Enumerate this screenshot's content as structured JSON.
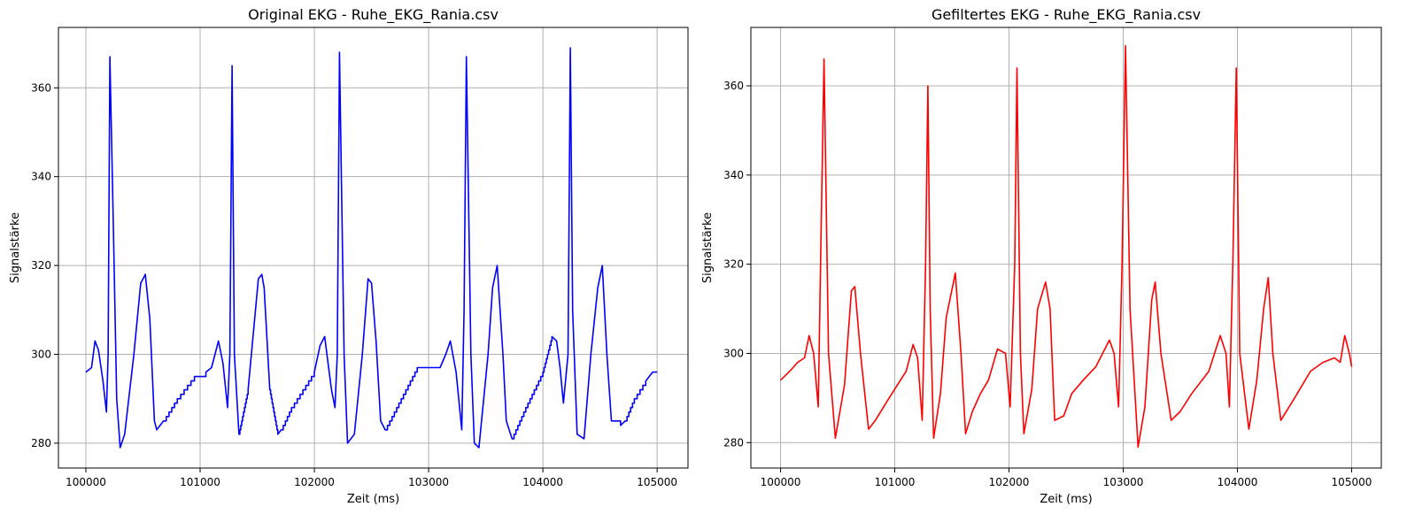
{
  "colors": {
    "background": "#ffffff",
    "grid": "#b0b0b0",
    "axes": "#000000"
  },
  "chart_data": [
    {
      "type": "line",
      "title": "Original EKG - Ruhe_EKG_Rania.csv",
      "xlabel": "Zeit (ms)",
      "ylabel": "Signalstärke",
      "xlim": [
        99760,
        105270
      ],
      "ylim": [
        274.4,
        373.6
      ],
      "x_ticks": [
        100000,
        101000,
        102000,
        103000,
        104000,
        105000
      ],
      "y_ticks": [
        280,
        300,
        320,
        340,
        360
      ],
      "x_tick_labels": [
        "100000",
        "101000",
        "102000",
        "103000",
        "104000",
        "105000"
      ],
      "y_tick_labels": [
        "280",
        "300",
        "320",
        "340",
        "360"
      ],
      "grid": true,
      "series": [
        {
          "color": "#0000ff",
          "stepped": true,
          "x": [
            100000,
            100050,
            100080,
            100110,
            100150,
            100180,
            100195,
            100210,
            100240,
            100270,
            100300,
            100340,
            100420,
            100480,
            100520,
            100560,
            100600,
            100620,
            100680,
            100800,
            100950,
            101050,
            101100,
            101140,
            101160,
            101200,
            101240,
            101260,
            101280,
            101300,
            101340,
            101420,
            101510,
            101540,
            101560,
            101610,
            101680,
            101710,
            101800,
            102000,
            102050,
            102090,
            102110,
            102150,
            102180,
            102200,
            102220,
            102260,
            102290,
            102350,
            102420,
            102470,
            102500,
            102540,
            102580,
            102620,
            102700,
            102900,
            103000,
            103100,
            103150,
            103190,
            103240,
            103290,
            103310,
            103330,
            103370,
            103400,
            103440,
            103520,
            103560,
            103600,
            103650,
            103680,
            103730,
            103850,
            104000,
            104080,
            104120,
            104150,
            104180,
            104220,
            104240,
            104260,
            104300,
            104360,
            104420,
            104480,
            104520,
            104560,
            104600,
            104680,
            104720,
            104800,
            104900,
            104960,
            105000
          ],
          "y": [
            296,
            297,
            303,
            301,
            294,
            287,
            300,
            367,
            330,
            290,
            279,
            282,
            300,
            316,
            318,
            308,
            285,
            283,
            285,
            290,
            295,
            296,
            297,
            301,
            303,
            298,
            288,
            300,
            365,
            300,
            282,
            292,
            317,
            318,
            315,
            292,
            282,
            283,
            288,
            296,
            302,
            304,
            300,
            292,
            288,
            300,
            368,
            300,
            280,
            282,
            300,
            317,
            316,
            303,
            285,
            283,
            287,
            297,
            297,
            297,
            300,
            303,
            296,
            283,
            310,
            367,
            300,
            280,
            279,
            300,
            315,
            320,
            300,
            285,
            281,
            288,
            296,
            304,
            303,
            297,
            289,
            300,
            369,
            310,
            282,
            281,
            300,
            315,
            320,
            300,
            285,
            284,
            285,
            290,
            294,
            296,
            296
          ]
        }
      ]
    },
    {
      "type": "line",
      "title": "Gefiltertes EKG - Ruhe_EKG_Rania.csv",
      "xlabel": "Zeit (ms)",
      "ylabel": "Signalstärke",
      "xlim": [
        99740,
        105260
      ],
      "ylim": [
        274.3,
        373.1
      ],
      "x_ticks": [
        100000,
        101000,
        102000,
        103000,
        104000,
        105000
      ],
      "y_ticks": [
        280,
        300,
        320,
        340,
        360
      ],
      "x_tick_labels": [
        "100000",
        "101000",
        "102000",
        "103000",
        "104000",
        "105000"
      ],
      "y_tick_labels": [
        "280",
        "300",
        "320",
        "340",
        "360"
      ],
      "grid": true,
      "series": [
        {
          "color": "#ff0000",
          "stepped": false,
          "x": [
            100000,
            100080,
            100150,
            100210,
            100250,
            100290,
            100330,
            100350,
            100380,
            100420,
            100480,
            100560,
            100620,
            100650,
            100700,
            100770,
            100830,
            100950,
            101100,
            101160,
            101200,
            101240,
            101270,
            101290,
            101310,
            101340,
            101400,
            101450,
            101530,
            101580,
            101620,
            101680,
            101750,
            101820,
            101900,
            101970,
            102010,
            102050,
            102070,
            102100,
            102130,
            102200,
            102250,
            102320,
            102360,
            102400,
            102480,
            102550,
            102650,
            102760,
            102880,
            102920,
            102960,
            102990,
            103020,
            103060,
            103130,
            103190,
            103250,
            103280,
            103330,
            103420,
            103500,
            103600,
            103750,
            103850,
            103900,
            103930,
            103960,
            103990,
            104020,
            104100,
            104170,
            104230,
            104270,
            104310,
            104380,
            104500,
            104640,
            104750,
            104850,
            104900,
            104940,
            104980,
            105000
          ],
          "y": [
            294,
            296,
            298,
            299,
            304,
            300,
            288,
            320,
            366,
            300,
            281,
            293,
            314,
            315,
            300,
            283,
            285,
            290,
            296,
            302,
            299,
            285,
            320,
            360,
            310,
            281,
            291,
            308,
            318,
            300,
            282,
            287,
            291,
            294,
            301,
            300,
            288,
            320,
            364,
            300,
            282,
            292,
            310,
            316,
            310,
            285,
            286,
            291,
            294,
            297,
            303,
            300,
            288,
            320,
            369,
            310,
            279,
            288,
            312,
            316,
            300,
            285,
            287,
            291,
            296,
            304,
            300,
            288,
            320,
            364,
            300,
            283,
            294,
            310,
            317,
            300,
            285,
            290,
            296,
            298,
            299,
            298,
            304,
            300,
            297
          ]
        }
      ]
    }
  ]
}
